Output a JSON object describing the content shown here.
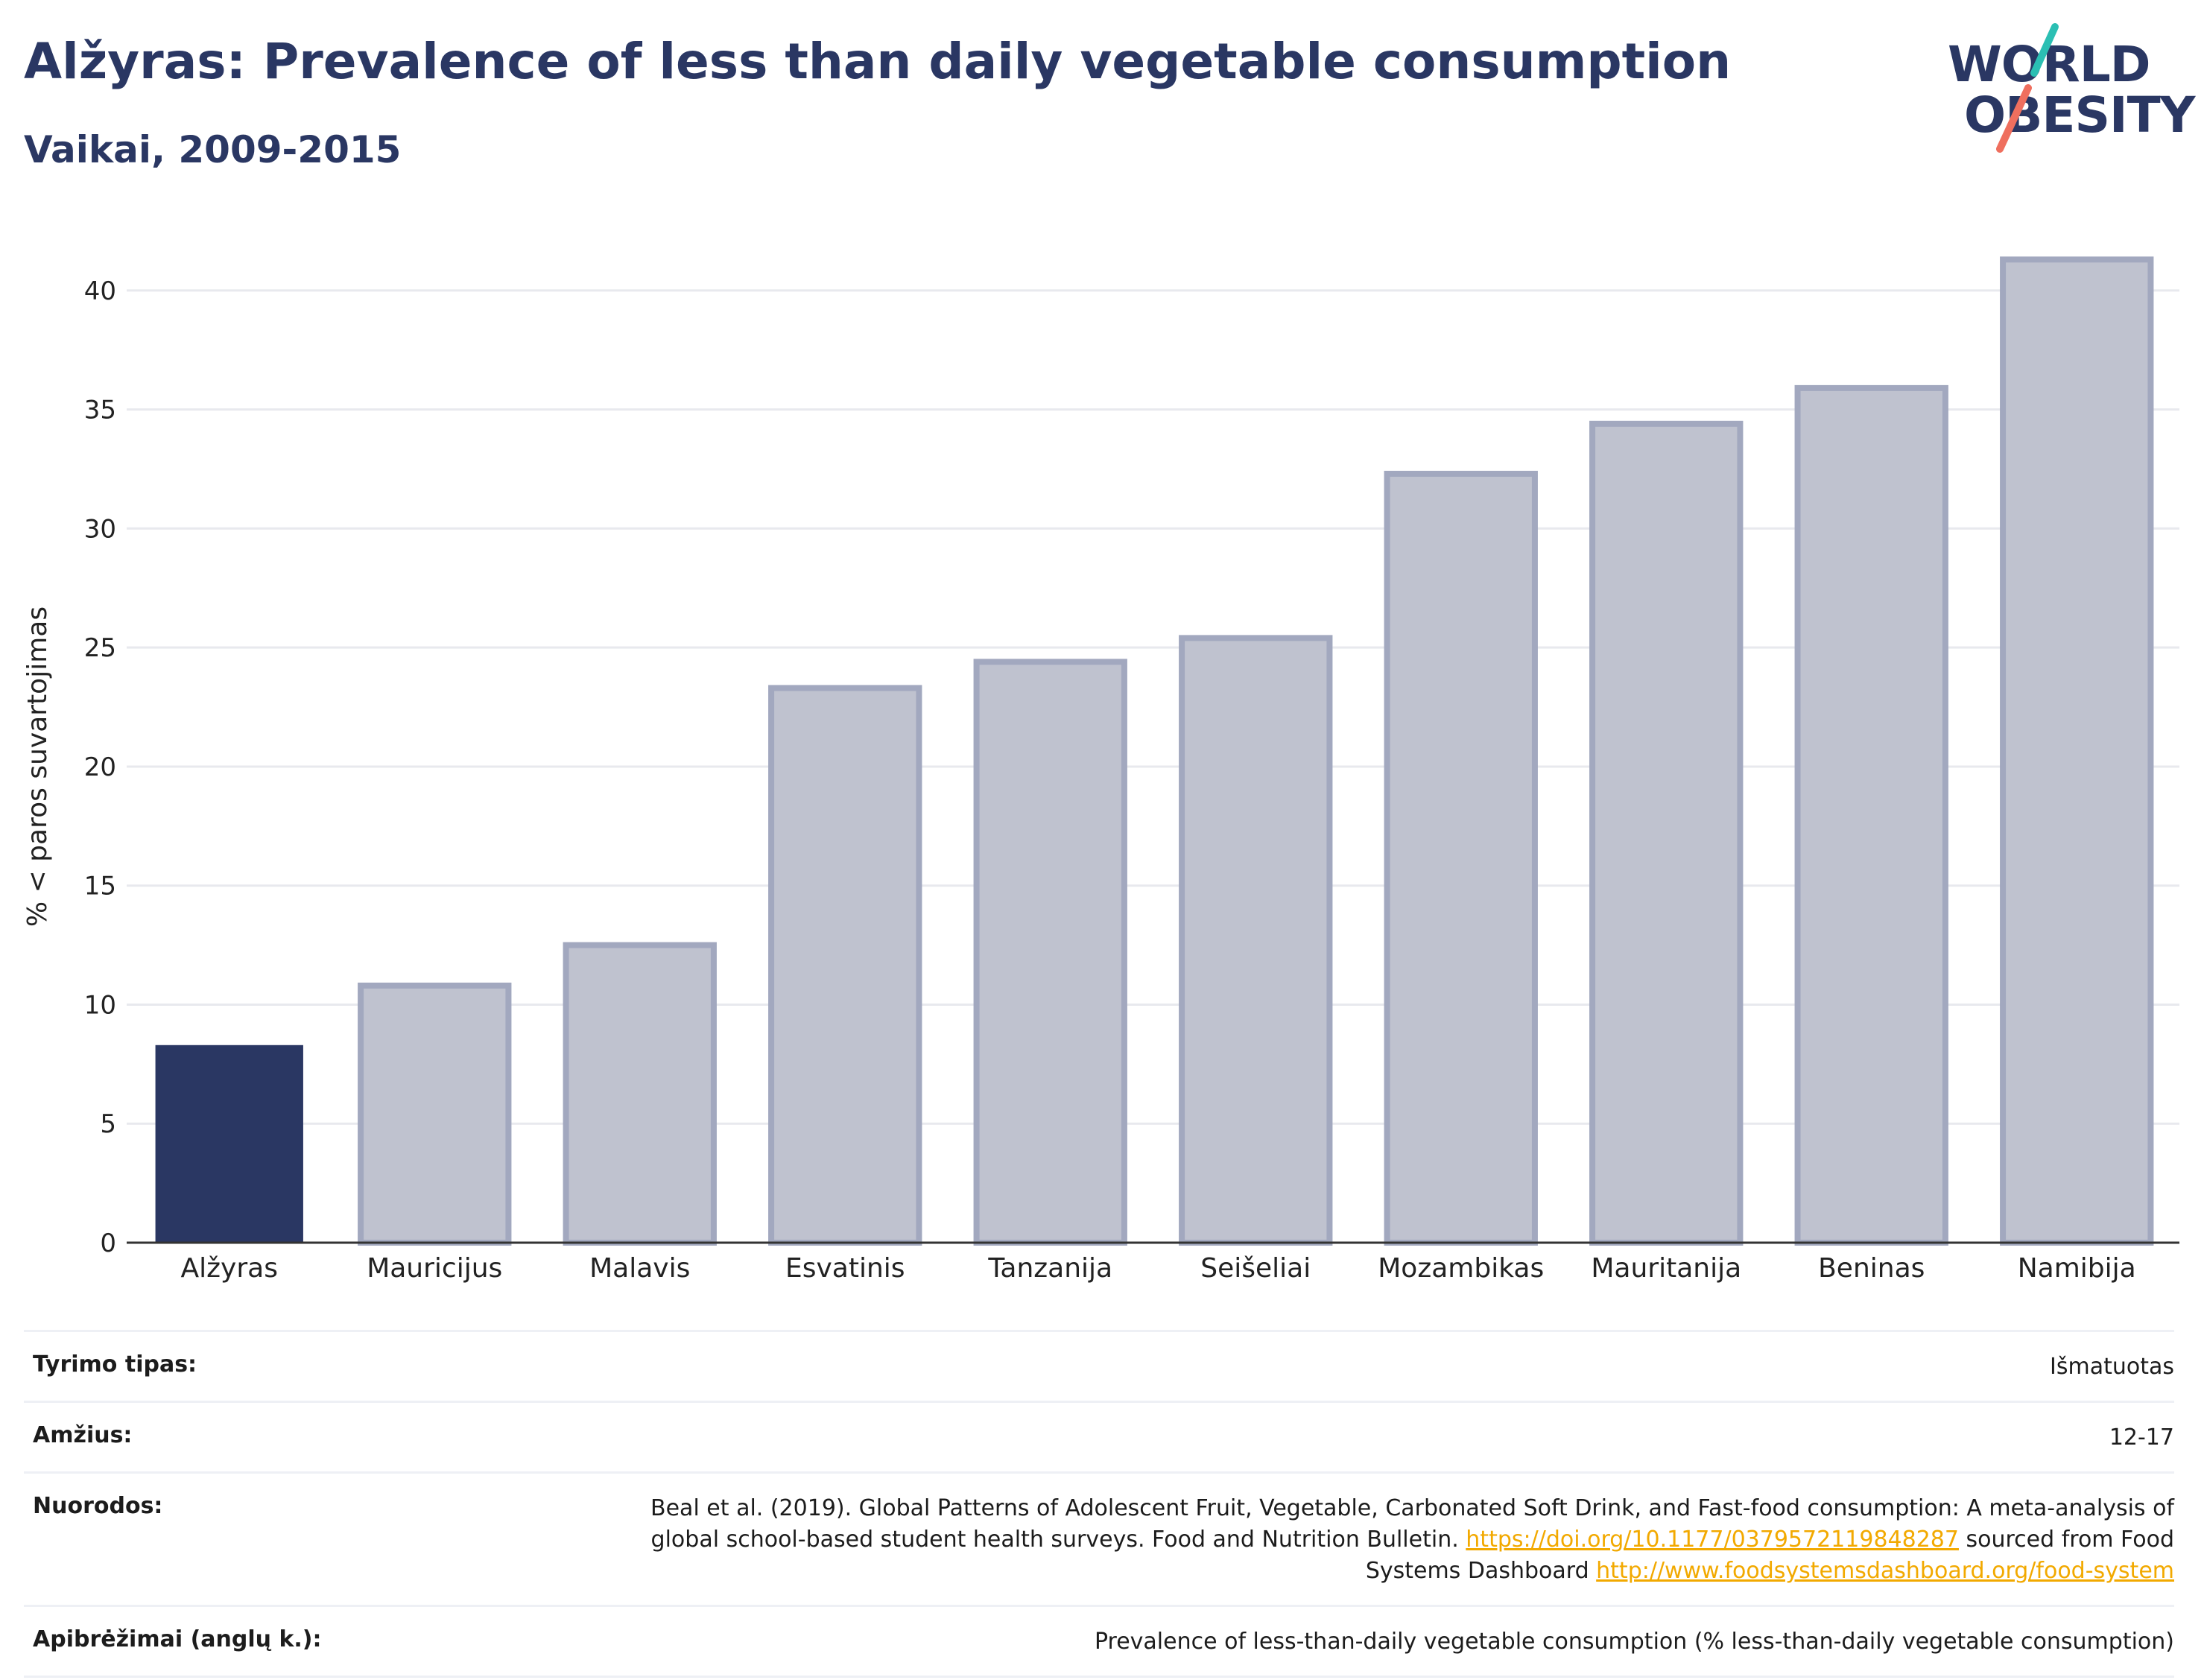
{
  "header": {
    "title": "Alžyras: Prevalence of less than daily vegetable consumption",
    "subtitle": "Vaikai, 2009-2015"
  },
  "logo": {
    "line1": "WORLD",
    "line2": "OBESITY",
    "colors": {
      "text": "#2a3763",
      "slash_top": "#2bbfb3",
      "slash_bottom": "#ef6f5e"
    }
  },
  "chart_data": {
    "type": "bar",
    "title": "Alžyras: Prevalence of less than daily vegetable consumption",
    "subtitle": "Vaikai, 2009-2015",
    "ylabel": "% < paros suvartojimas",
    "xlabel": "",
    "ylim": [
      0,
      42.5
    ],
    "yticks": [
      0,
      5,
      10,
      15,
      20,
      25,
      30,
      35,
      40
    ],
    "grid": true,
    "categories": [
      "Alžyras",
      "Mauricijus",
      "Malavis",
      "Esvatinis",
      "Tanzanija",
      "Seišeliai",
      "Mozambikas",
      "Mauritanija",
      "Beninas",
      "Namibija"
    ],
    "values": [
      8.3,
      10.8,
      12.5,
      23.3,
      24.4,
      25.4,
      32.3,
      34.4,
      35.9,
      41.3
    ],
    "highlight_index": 0,
    "colors": {
      "highlight": "#2a3763",
      "bar_fill": "#bfc2cf",
      "bar_stroke": "#a2a8bf",
      "grid": "#e8e9ee",
      "axis": "#333333"
    }
  },
  "footer": {
    "rows": [
      {
        "label": "Tyrimo tipas:",
        "value": "Išmatuotas"
      },
      {
        "label": "Amžius:",
        "value": "12-17"
      },
      {
        "label": "Nuorodos:",
        "text1": "Beal et al. (2019). Global Patterns of Adolescent Fruit, Vegetable, Carbonated Soft Drink, and Fast-food consumption: A meta-analysis of global school-based student health surveys. Food and Nutrition Bulletin. ",
        "link1": "https://doi.org/10.1177/0379572119848287",
        "text2": " sourced from Food Systems Dashboard ",
        "link2": "http://www.foodsystemsdashboard.org/food-system"
      },
      {
        "label": "Apibrėžimai (anglų k.):",
        "value": "Prevalence of less-than-daily vegetable consumption (% less-than-daily vegetable consumption)"
      }
    ]
  }
}
